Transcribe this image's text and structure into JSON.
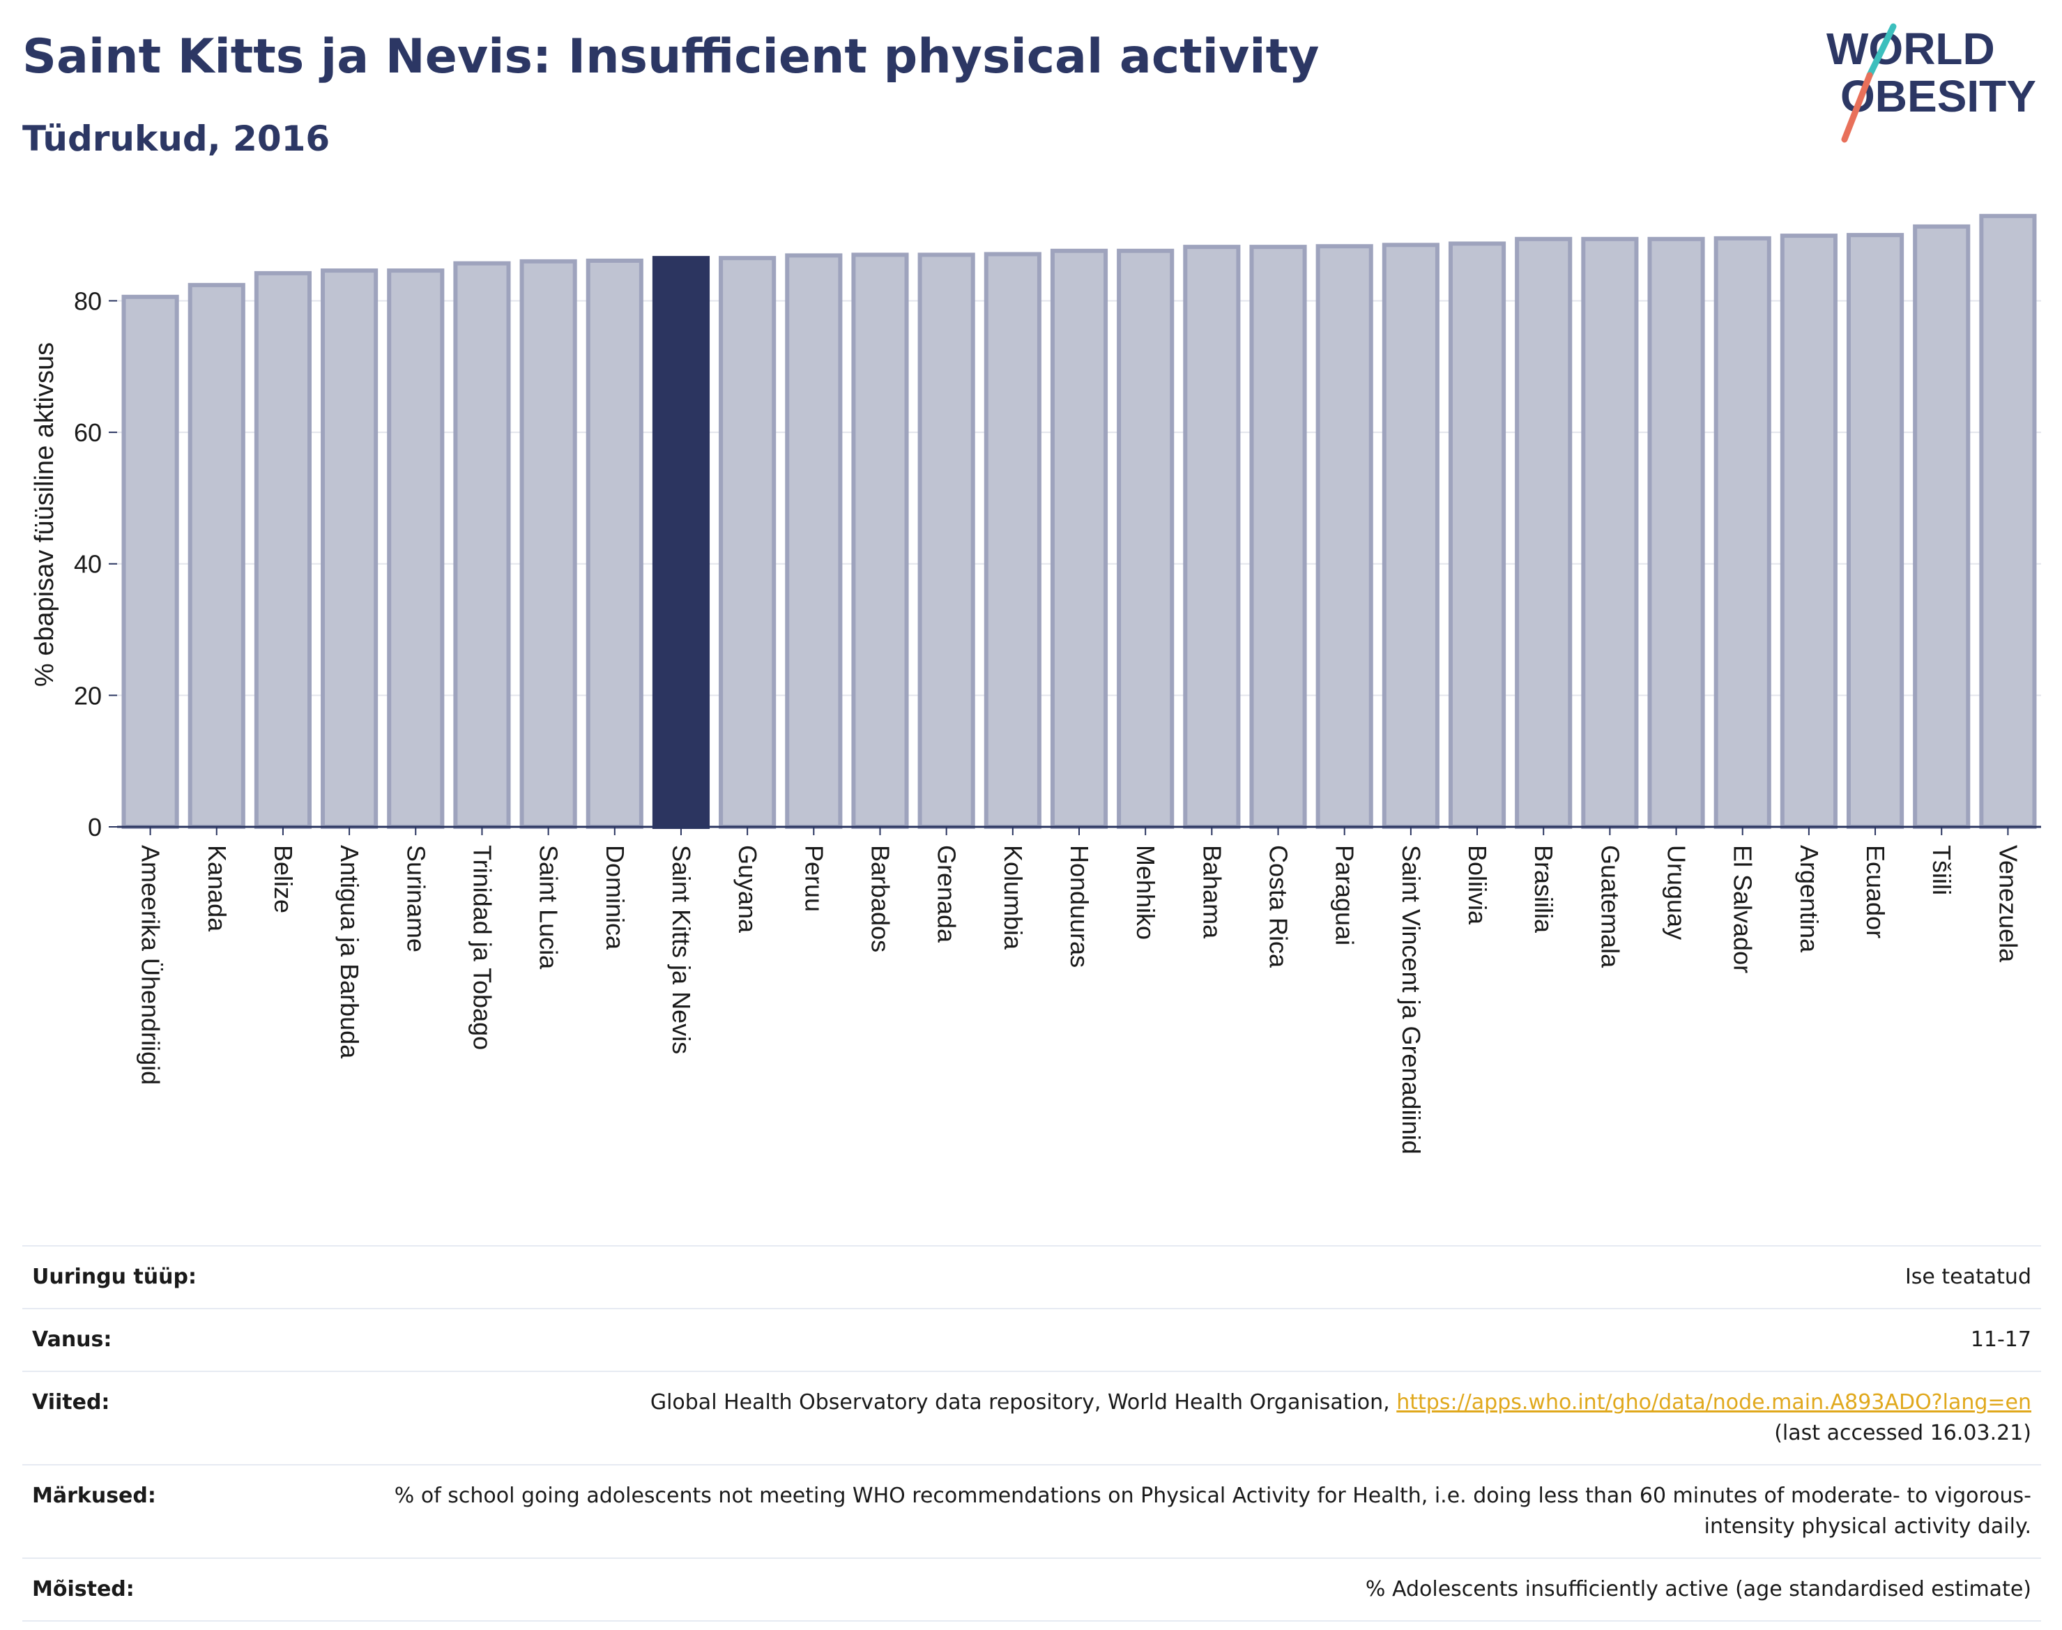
{
  "header": {
    "title": "Saint Kitts ja Nevis: Insufficient physical activity",
    "subtitle": "Tüdrukud, 2016"
  },
  "logo": {
    "line1": "WORLD",
    "line2": "OBESITY"
  },
  "colors": {
    "bar": "#bfc3d2",
    "bar_outline": "#9ea3bd",
    "highlight": "#2c3560",
    "axis": "#2a3560",
    "grid": "#e3e5ec",
    "logo_text": "#2c3764",
    "logo_teal": "#3cbfbd",
    "logo_coral": "#e8705a",
    "link": "#e0a81c"
  },
  "chart_data": {
    "type": "bar",
    "ylabel": "% ebapisav füüsiline aktivsus",
    "ylim": [
      0,
      95
    ],
    "yticks": [
      0,
      20,
      40,
      60,
      80
    ],
    "grid": true,
    "highlight": "Saint Kitts ja Nevis",
    "categories": [
      "Ameerika Ühendriigid",
      "Kanada",
      "Belize",
      "Antigua ja Barbuda",
      "Suriname",
      "Trinidad ja Tobago",
      "Saint Lucia",
      "Dominica",
      "Saint Kitts ja Nevis",
      "Guyana",
      "Peruu",
      "Barbados",
      "Grenada",
      "Kolumbia",
      "Honduuras",
      "Mehhiko",
      "Bahama",
      "Costa Rica",
      "Paraguai",
      "Saint Vincent ja Grenadiinid",
      "Boliivia",
      "Brasiilia",
      "Guatemala",
      "Uruguay",
      "El Salvador",
      "Argentina",
      "Ecuador",
      "Tšiili",
      "Venezuela"
    ],
    "values": [
      80.6,
      82.4,
      84.2,
      84.6,
      84.6,
      85.7,
      86.0,
      86.1,
      86.5,
      86.5,
      86.9,
      87.0,
      87.0,
      87.1,
      87.6,
      87.6,
      88.2,
      88.2,
      88.3,
      88.5,
      88.7,
      89.4,
      89.4,
      89.4,
      89.5,
      89.9,
      90.0,
      91.3,
      92.9
    ]
  },
  "details": [
    {
      "label": "Uuringu tüüp:",
      "value": "Ise teatatud"
    },
    {
      "label": "Vanus:",
      "value": "11-17"
    },
    {
      "label": "Viited:",
      "value": "Global Health Observatory data repository, World Health Organisation,",
      "link": "https://apps.who.int/gho/data/node.main.A893ADO?lang=en",
      "note": "(last accessed 16.03.21)"
    },
    {
      "label": "Märkused:",
      "value": "% of school going adolescents not meeting WHO recommendations on Physical Activity for Health, i.e. doing less than 60 minutes of moderate- to vigorous-intensity physical activity daily."
    },
    {
      "label": "Mõisted:",
      "value": "% Adolescents insufficiently active (age standardised estimate)"
    }
  ]
}
